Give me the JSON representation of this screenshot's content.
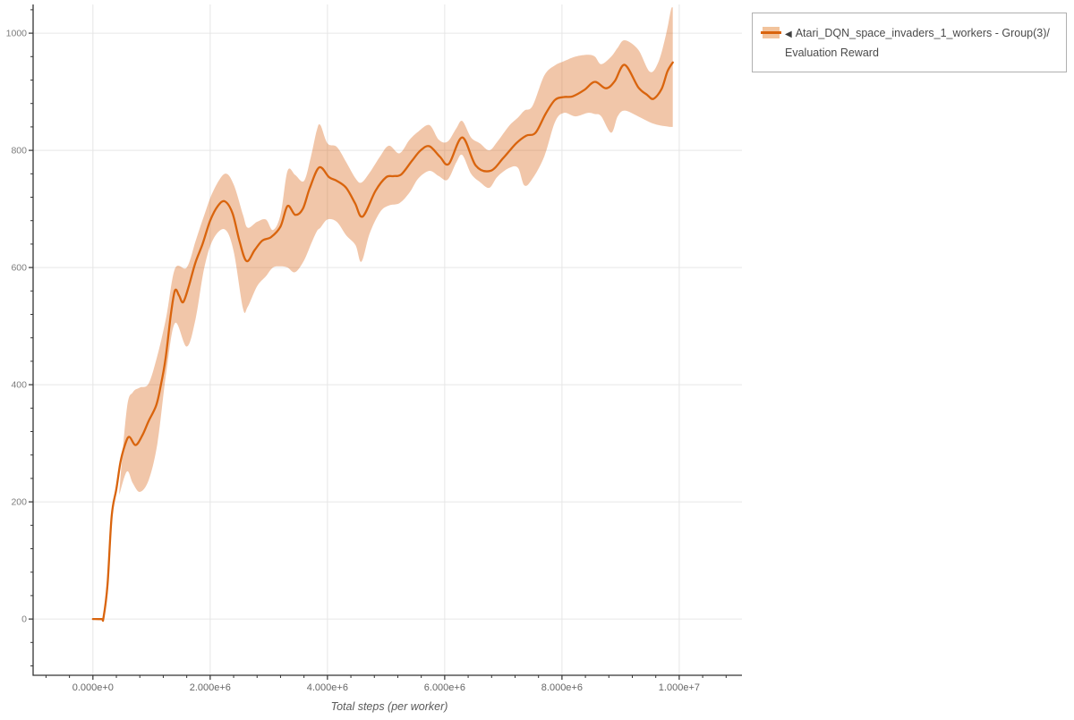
{
  "legend": {
    "collapse_marker": "◀",
    "series_label": "Atari_DQN_space_invaders_1_workers - Group(3)/Evaluation Reward"
  },
  "axes": {
    "x_title": "Total steps (per worker)",
    "x_tick_labels": [
      "0.000e+0",
      "2.000e+6",
      "4.000e+6",
      "6.000e+6",
      "8.000e+6",
      "1.000e+7"
    ],
    "x_tick_values_e6": [
      0,
      2,
      4,
      6,
      8,
      10
    ],
    "x_minor_step_e6": 0.4,
    "x_minor_range_e6": [
      -0.8,
      10.8
    ],
    "y_tick_labels": [
      "0",
      "200",
      "400",
      "600",
      "800",
      "1000"
    ],
    "y_tick_values": [
      0,
      200,
      400,
      600,
      800,
      1000
    ],
    "y_minor_step": 40,
    "y_minor_range": [
      -80,
      1040
    ],
    "xlim_e6": [
      -1.02,
      11.07
    ],
    "ylim": [
      -96,
      1049
    ],
    "grid": "major-only"
  },
  "colors": {
    "line": "#d9640d",
    "band_fill": "rgba(216,98,16,0.36)",
    "swatch_fill": "#f2c39c",
    "grid": "#e6e6e6",
    "axis": "#333333",
    "legend_border": "#b0b0b0",
    "legend_text": "#4a4a4a"
  },
  "chart_data": {
    "type": "line",
    "title": "",
    "xlabel": "Total steps (per worker)",
    "ylabel": "",
    "legend_position": "top-right-outside",
    "series": [
      {
        "name": "Atari_DQN_space_invaders_1_workers - Group(3)/Evaluation Reward",
        "x_steps_e6": [
          0.0,
          0.15,
          0.18,
          0.25,
          0.32,
          0.4,
          0.47,
          0.55,
          0.62,
          0.73,
          0.85,
          0.95,
          1.08,
          1.16,
          1.24,
          1.33,
          1.4,
          1.47,
          1.54,
          1.64,
          1.75,
          1.87,
          2.0,
          2.13,
          2.25,
          2.38,
          2.5,
          2.62,
          2.76,
          2.89,
          3.04,
          3.2,
          3.32,
          3.45,
          3.58,
          3.7,
          3.86,
          4.03,
          4.16,
          4.32,
          4.47,
          4.6,
          4.82,
          5.0,
          5.13,
          5.26,
          5.44,
          5.59,
          5.74,
          5.92,
          6.07,
          6.3,
          6.53,
          6.78,
          7.0,
          7.22,
          7.39,
          7.55,
          7.72,
          7.88,
          8.03,
          8.18,
          8.38,
          8.56,
          8.75,
          8.9,
          9.07,
          9.3,
          9.45,
          9.56,
          9.7,
          9.8,
          9.89
        ],
        "mean_reward": [
          0,
          0,
          2,
          60,
          176,
          222,
          268,
          298,
          311,
          297,
          315,
          338,
          365,
          400,
          445,
          520,
          561,
          552,
          541,
          570,
          609,
          640,
          680,
          705,
          713,
          693,
          645,
          611,
          630,
          646,
          652,
          670,
          705,
          690,
          700,
          736,
          771,
          754,
          748,
          736,
          710,
          687,
          731,
          754,
          756,
          759,
          782,
          800,
          807,
          789,
          777,
          822,
          774,
          765,
          787,
          812,
          825,
          830,
          862,
          886,
          891,
          892,
          903,
          917,
          906,
          918,
          946,
          908,
          895,
          888,
          905,
          935,
          950
        ]
      }
    ],
    "band": {
      "meaning": "min-max / std shaded region around group mean",
      "x_steps_e6": [
        0.45,
        0.58,
        0.68,
        0.8,
        0.95,
        1.1,
        1.25,
        1.4,
        1.6,
        1.75,
        1.9,
        2.05,
        2.25,
        2.4,
        2.56,
        2.64,
        2.8,
        2.95,
        3.07,
        3.2,
        3.32,
        3.45,
        3.6,
        3.72,
        3.82,
        3.88,
        4.0,
        4.16,
        4.32,
        4.48,
        4.58,
        4.72,
        4.9,
        5.05,
        5.23,
        5.4,
        5.55,
        5.74,
        5.9,
        6.05,
        6.2,
        6.3,
        6.45,
        6.6,
        6.76,
        6.9,
        7.1,
        7.25,
        7.36,
        7.5,
        7.7,
        7.88,
        8.03,
        8.23,
        8.44,
        8.56,
        8.67,
        8.84,
        8.95,
        9.07,
        9.3,
        9.5,
        9.65,
        9.78,
        9.86,
        9.89
      ],
      "lower": [
        212,
        252,
        232,
        217,
        237,
        300,
        420,
        505,
        465,
        512,
        600,
        648,
        665,
        628,
        530,
        533,
        568,
        585,
        600,
        602,
        600,
        592,
        612,
        640,
        662,
        668,
        682,
        678,
        655,
        638,
        610,
        658,
        695,
        706,
        710,
        728,
        752,
        765,
        756,
        750,
        780,
        792,
        760,
        746,
        736,
        755,
        770,
        770,
        740,
        752,
        790,
        848,
        864,
        858,
        864,
        862,
        858,
        830,
        858,
        868,
        858,
        848,
        843,
        841,
        840,
        840
      ],
      "upper": [
        218,
        360,
        387,
        395,
        402,
        450,
        515,
        598,
        600,
        645,
        690,
        730,
        760,
        742,
        690,
        668,
        678,
        682,
        664,
        690,
        765,
        758,
        748,
        790,
        835,
        843,
        812,
        806,
        780,
        752,
        745,
        762,
        790,
        808,
        795,
        818,
        832,
        843,
        818,
        815,
        838,
        850,
        822,
        812,
        800,
        815,
        842,
        856,
        868,
        876,
        928,
        945,
        952,
        960,
        963,
        960,
        947,
        960,
        975,
        988,
        972,
        934,
        952,
        1000,
        1040,
        1044
      ]
    }
  }
}
